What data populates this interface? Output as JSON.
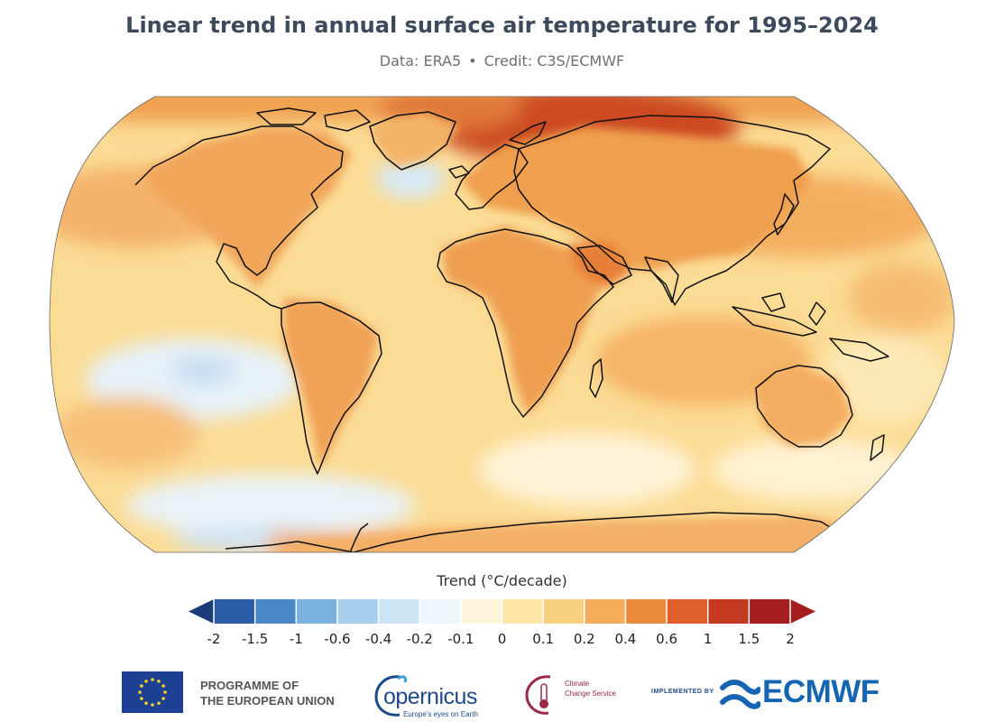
{
  "title": "Linear trend in annual surface air temperature for 1995–2024",
  "subtitle": {
    "data": "Data: ERA5",
    "separator": "•",
    "credit": "Credit: C3S/ECMWF"
  },
  "legend": {
    "title": "Trend (°C/decade)",
    "ticks": [
      "-2",
      "-1.5",
      "-1",
      "-0.6",
      "-0.4",
      "-0.2",
      "-0.1",
      "0",
      "0.1",
      "0.2",
      "0.4",
      "0.6",
      "1",
      "1.5",
      "2"
    ],
    "colors": [
      "#1b3a7a",
      "#2b5ca8",
      "#4a86c8",
      "#7ab2e0",
      "#a8d0ee",
      "#cde4f5",
      "#eef6fc",
      "#fff5dc",
      "#fde6a8",
      "#fbcf80",
      "#f5ad5c",
      "#ec8a3c",
      "#de5f2a",
      "#c33a20",
      "#a51e1e"
    ]
  },
  "map": {
    "projection": "Robinson",
    "ocean_base_color": "#fbdc95",
    "land_color": "#f3b260",
    "coastline_color": "#111111"
  },
  "footer": {
    "eu_line1": "PROGRAMME OF",
    "eu_line2": "THE EUROPEAN UNION",
    "copernicus": "opernicus",
    "copernicus_tagline": "Europe's eyes on Earth",
    "c3s_line1": "Climate",
    "c3s_line2": "Change Service",
    "implemented_by": "IMPLEMENTED BY",
    "ecmwf": "ECMWF"
  }
}
